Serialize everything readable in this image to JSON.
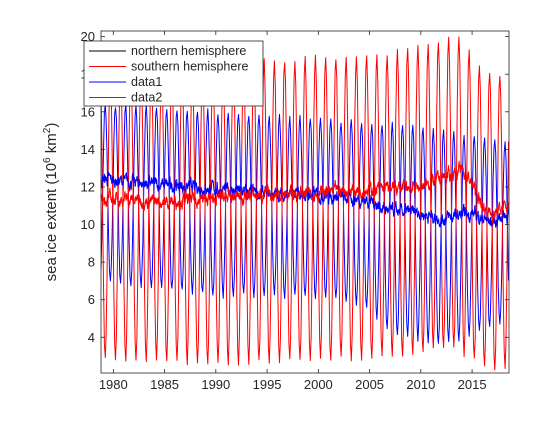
{
  "chart_data": {
    "type": "line",
    "title": "",
    "xlabel": "",
    "ylabel_main": "sea ice extent (10",
    "ylabel_sup": "6",
    "ylabel_unit": " km",
    "ylabel_sup2": "2",
    "ylabel_close": ")",
    "xlim": [
      1978.8,
      2018.6
    ],
    "ylim": [
      2.1,
      20.3
    ],
    "xticks": [
      1980,
      1985,
      1990,
      1995,
      2000,
      2005,
      2010,
      2015
    ],
    "xtick_labels": [
      "1980",
      "1985",
      "1990",
      "1995",
      "2000",
      "2005",
      "2010",
      "2015"
    ],
    "yticks": [
      4,
      6,
      8,
      10,
      12,
      14,
      16,
      18,
      20
    ],
    "ytick_labels": [
      "4",
      "6",
      "8",
      "10",
      "12",
      "14",
      "16",
      "18",
      "20"
    ],
    "grid": false,
    "legend_position": "top-left",
    "series": [
      {
        "name": "northern hemisphere",
        "color": "#0000ff",
        "kind": "seasonal",
        "phase_peak_month": 3,
        "max_by_year": [
          [
            1979,
            16.4
          ],
          [
            1990,
            16.0
          ],
          [
            2000,
            15.6
          ],
          [
            2010,
            15.3
          ],
          [
            2018,
            14.5
          ]
        ],
        "min_by_year": [
          [
            1979,
            7.0
          ],
          [
            1990,
            6.2
          ],
          [
            2000,
            6.2
          ],
          [
            2005,
            5.5
          ],
          [
            2007,
            4.2
          ],
          [
            2012,
            3.6
          ],
          [
            2018,
            4.7
          ]
        ]
      },
      {
        "name": "southern hemisphere",
        "color": "#ff0000",
        "kind": "seasonal",
        "phase_peak_month": 9,
        "max_by_year": [
          [
            1979,
            18.2
          ],
          [
            1990,
            18.5
          ],
          [
            2000,
            18.9
          ],
          [
            2006,
            19.0
          ],
          [
            2014,
            20.0
          ],
          [
            2016,
            18.3
          ],
          [
            2018,
            18.0
          ]
        ],
        "min_by_year": [
          [
            1979,
            2.9
          ],
          [
            1990,
            2.6
          ],
          [
            2000,
            2.8
          ],
          [
            2008,
            3.0
          ],
          [
            2013,
            3.5
          ],
          [
            2017,
            2.2
          ],
          [
            2018,
            2.4
          ]
        ]
      },
      {
        "name": "data1",
        "color": "#0000ff",
        "kind": "annual_mean",
        "mean_by_year": [
          [
            1979,
            12.4
          ],
          [
            1985,
            12.1
          ],
          [
            1990,
            11.9
          ],
          [
            1995,
            11.6
          ],
          [
            2000,
            11.6
          ],
          [
            2005,
            11.3
          ],
          [
            2007,
            10.7
          ],
          [
            2010,
            10.6
          ],
          [
            2012,
            10.3
          ],
          [
            2015,
            10.6
          ],
          [
            2017,
            10.1
          ],
          [
            2018,
            10.5
          ]
        ]
      },
      {
        "name": "data2",
        "color": "#ff0000",
        "kind": "annual_mean",
        "mean_by_year": [
          [
            1979,
            11.4
          ],
          [
            1985,
            11.2
          ],
          [
            1990,
            11.4
          ],
          [
            1995,
            11.6
          ],
          [
            2000,
            11.7
          ],
          [
            2005,
            11.9
          ],
          [
            2010,
            12.0
          ],
          [
            2014,
            12.9
          ],
          [
            2015,
            12.2
          ],
          [
            2016,
            11.0
          ],
          [
            2017,
            10.5
          ],
          [
            2018,
            10.9
          ]
        ]
      }
    ]
  }
}
